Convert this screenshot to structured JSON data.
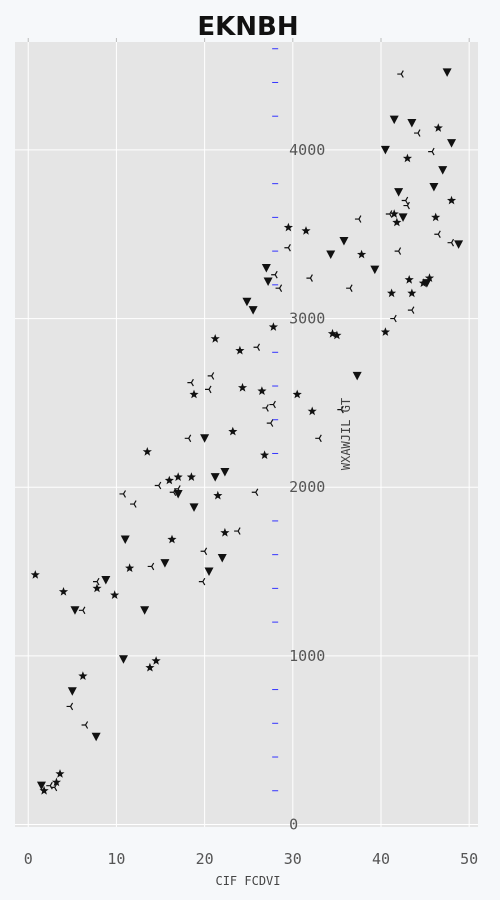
{
  "chart_data": {
    "type": "scatter",
    "title": "EKNBH",
    "xlabel": "CIF FCDVI",
    "ylabel": "WXAWJIL GT",
    "xlim": [
      -1.5,
      51
    ],
    "ylim": [
      -15,
      4640
    ],
    "xticks": [
      0,
      10,
      20,
      30,
      40,
      50
    ],
    "yticks": [
      0,
      1000,
      2000,
      3000,
      4000
    ],
    "grid": true,
    "colors": {
      "background": "#e5e5e5",
      "grid": "#ffffff",
      "marker": "#111111",
      "minor_tick": "#3333ff"
    },
    "series": [
      {
        "marker": "star",
        "x": [
          0.8,
          1.8,
          3.2,
          3.6,
          4.0,
          6.2,
          7.8,
          9.8,
          11.5,
          13.5,
          13.8,
          14.5,
          16.0,
          16.3,
          17.0,
          18.5,
          18.8,
          21.2,
          21.5,
          22.3,
          23.2,
          24.0,
          24.3,
          26.5,
          26.8,
          27.8,
          29.5,
          30.5,
          31.5,
          32.2,
          34.5,
          35.0,
          37.8,
          40.5,
          41.2,
          41.5,
          41.8,
          43.0,
          43.2,
          43.5,
          44.8,
          45.5,
          46.2,
          46.5,
          48.0
        ],
        "y": [
          1480,
          200,
          250,
          300,
          1380,
          880,
          1400,
          1360,
          1520,
          2210,
          930,
          970,
          2040,
          1690,
          2060,
          2060,
          2550,
          2880,
          1950,
          1730,
          2330,
          2810,
          2590,
          2570,
          2190,
          2950,
          3540,
          2550,
          3520,
          2450,
          2910,
          2900,
          3380,
          2920,
          3150,
          3620,
          3570,
          3950,
          3230,
          3150,
          3210,
          3240,
          3600,
          4130,
          3700
        ]
      },
      {
        "marker": "tri_down",
        "x": [
          1.5,
          5.3,
          5.0,
          7.7,
          8.8,
          10.8,
          11.0,
          13.2,
          15.5,
          17.0,
          18.8,
          20.0,
          20.5,
          21.2,
          22.0,
          22.3,
          24.8,
          25.5,
          27.0,
          27.2,
          34.3,
          35.8,
          37.3,
          39.3,
          40.5,
          41.5,
          42.0,
          42.5,
          43.5,
          45.2,
          46.0,
          47.0,
          47.5,
          48.0,
          48.8
        ],
        "y": [
          230,
          1270,
          790,
          520,
          1450,
          980,
          1690,
          1270,
          1550,
          1960,
          1880,
          2290,
          1500,
          2060,
          1580,
          2090,
          3100,
          3050,
          3300,
          3220,
          3380,
          3460,
          2660,
          3290,
          4000,
          4180,
          3750,
          3600,
          4160,
          3210,
          3780,
          3880,
          4460,
          4040,
          3440
        ]
      },
      {
        "marker": "tri_left",
        "x": [
          2.5,
          3.0,
          4.8,
          6.2,
          6.5,
          7.8,
          10.8,
          12.0,
          14.0,
          14.8,
          16.5,
          17.0,
          18.2,
          18.5,
          19.8,
          20.0,
          20.5,
          20.8,
          23.8,
          25.8,
          26.0,
          27.0,
          27.5,
          27.8,
          28.0,
          28.5,
          29.5,
          32.0,
          33.0,
          35.5,
          36.5,
          37.5,
          41.0,
          41.5,
          42.0,
          42.3,
          42.8,
          43.0,
          43.5,
          44.2,
          45.8,
          46.5,
          48.0
        ],
        "y": [
          230,
          220,
          700,
          1270,
          590,
          1440,
          1960,
          1900,
          1530,
          2010,
          1970,
          1990,
          2290,
          2620,
          1440,
          1620,
          2580,
          2660,
          1740,
          1970,
          2830,
          2470,
          2380,
          2490,
          3260,
          3180,
          3420,
          3240,
          2290,
          2460,
          3180,
          3590,
          3620,
          3000,
          3400,
          4450,
          3700,
          3670,
          3050,
          4100,
          3990,
          3500,
          3450
        ]
      }
    ]
  }
}
